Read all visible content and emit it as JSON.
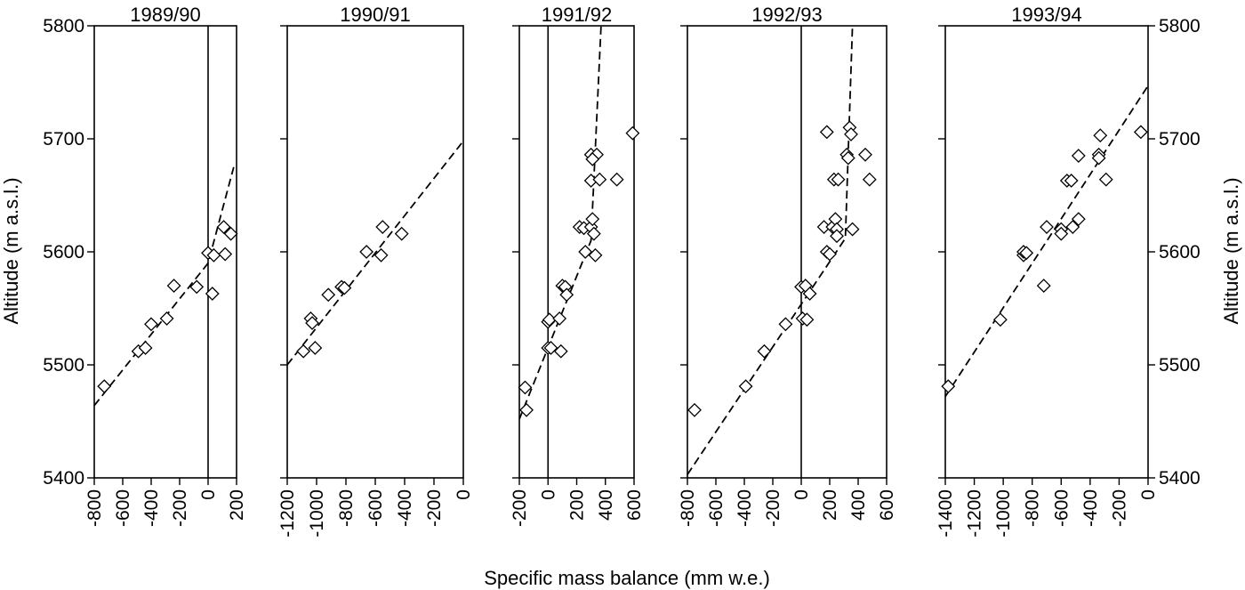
{
  "figure": {
    "xlabel": "Specific mass balance (mm w.e.)",
    "ylabel_left": "Altitude (m a.s.l.)",
    "ylabel_right": "Altitude (m a.s.l.)"
  },
  "chart_data": [
    {
      "type": "scatter",
      "title": "1989/90",
      "xlabel": "Specific mass balance (mm w.e.)",
      "ylabel": "Altitude (m a.s.l.)",
      "xlim": [
        -800,
        200
      ],
      "ylim": [
        5400,
        5800
      ],
      "xticks": [
        "-800",
        "-600",
        "-400",
        "-200",
        "0",
        "200"
      ],
      "yticks": [
        "5400",
        "5500",
        "5600",
        "5700",
        "5800"
      ],
      "y_tick_labels_side": "left",
      "zero_line": true,
      "points": [
        [
          -730,
          5481
        ],
        [
          -490,
          5512
        ],
        [
          -440,
          5515
        ],
        [
          -400,
          5536
        ],
        [
          -290,
          5541
        ],
        [
          -240,
          5570
        ],
        [
          -80,
          5569
        ],
        [
          0,
          5599
        ],
        [
          30,
          5563
        ],
        [
          40,
          5597
        ],
        [
          110,
          5622
        ],
        [
          120,
          5598
        ],
        [
          160,
          5616
        ]
      ],
      "fit_line": [
        [
          -800,
          5464
        ],
        [
          0,
          5590
        ],
        [
          180,
          5675
        ]
      ]
    },
    {
      "type": "scatter",
      "title": "1990/91",
      "xlabel": "Specific mass balance (mm w.e.)",
      "ylabel": "Altitude (m a.s.l.)",
      "xlim": [
        -1200,
        0
      ],
      "ylim": [
        5400,
        5800
      ],
      "xticks": [
        "-1200",
        "-1000",
        "-800",
        "-600",
        "-400",
        "-200",
        "0"
      ],
      "zero_line": false,
      "points": [
        [
          -1090,
          5512
        ],
        [
          -1040,
          5541
        ],
        [
          -1030,
          5537
        ],
        [
          -1010,
          5515
        ],
        [
          -920,
          5562
        ],
        [
          -830,
          5569
        ],
        [
          -810,
          5568
        ],
        [
          -660,
          5600
        ],
        [
          -550,
          5622
        ],
        [
          -560,
          5597
        ],
        [
          -420,
          5616
        ]
      ],
      "fit_line": [
        [
          -1200,
          5500
        ],
        [
          0,
          5698
        ]
      ]
    },
    {
      "type": "scatter",
      "title": "1991/92",
      "xlabel": "Specific mass balance (mm w.e.)",
      "ylabel": "Altitude (m a.s.l.)",
      "xlim": [
        -200,
        600
      ],
      "ylim": [
        5400,
        5800
      ],
      "xticks": [
        "-200",
        "0",
        "200",
        "400",
        "600"
      ],
      "zero_line": true,
      "points": [
        [
          -160,
          5480
        ],
        [
          -150,
          5460
        ],
        [
          0,
          5538
        ],
        [
          10,
          5540
        ],
        [
          0,
          5515
        ],
        [
          20,
          5515
        ],
        [
          90,
          5512
        ],
        [
          100,
          5570
        ],
        [
          80,
          5541
        ],
        [
          120,
          5569
        ],
        [
          130,
          5562
        ],
        [
          220,
          5622
        ],
        [
          250,
          5621
        ],
        [
          260,
          5600
        ],
        [
          300,
          5622
        ],
        [
          310,
          5629
        ],
        [
          320,
          5616
        ],
        [
          300,
          5686
        ],
        [
          340,
          5686
        ],
        [
          310,
          5682
        ],
        [
          300,
          5663
        ],
        [
          360,
          5664
        ],
        [
          330,
          5597
        ],
        [
          480,
          5664
        ],
        [
          590,
          5705
        ]
      ],
      "fit_line": [
        [
          -200,
          5452
        ],
        [
          300,
          5610
        ],
        [
          370,
          5800
        ]
      ]
    },
    {
      "type": "scatter",
      "title": "1992/93",
      "xlabel": "Specific mass balance (mm w.e.)",
      "ylabel": "Altitude (m a.s.l.)",
      "xlim": [
        -800,
        600
      ],
      "ylim": [
        5400,
        5800
      ],
      "xticks": [
        "-800",
        "-600",
        "-400",
        "-200",
        "0",
        "200",
        "400",
        "600"
      ],
      "zero_line": true,
      "points": [
        [
          -750,
          5460
        ],
        [
          -390,
          5481
        ],
        [
          -260,
          5512
        ],
        [
          -110,
          5536
        ],
        [
          0,
          5569
        ],
        [
          30,
          5570
        ],
        [
          10,
          5541
        ],
        [
          40,
          5540
        ],
        [
          60,
          5563
        ],
        [
          160,
          5622
        ],
        [
          180,
          5600
        ],
        [
          200,
          5598
        ],
        [
          220,
          5622
        ],
        [
          240,
          5629
        ],
        [
          250,
          5620
        ],
        [
          250,
          5614
        ],
        [
          230,
          5664
        ],
        [
          260,
          5664
        ],
        [
          180,
          5706
        ],
        [
          320,
          5686
        ],
        [
          330,
          5683
        ],
        [
          340,
          5710
        ],
        [
          350,
          5704
        ],
        [
          360,
          5620
        ],
        [
          450,
          5686
        ],
        [
          480,
          5664
        ]
      ],
      "fit_line": [
        [
          -800,
          5403
        ],
        [
          310,
          5612
        ],
        [
          360,
          5800
        ]
      ]
    },
    {
      "type": "scatter",
      "title": "1993/94",
      "xlabel": "Specific mass balance (mm w.e.)",
      "ylabel": "Altitude (m a.s.l.)",
      "xlim": [
        -1400,
        0
      ],
      "ylim": [
        5400,
        5800
      ],
      "xticks": [
        "-1400",
        "-1200",
        "-1000",
        "-800",
        "-600",
        "-400",
        "-200",
        "0"
      ],
      "yticks": [
        "5400",
        "5500",
        "5600",
        "5700",
        "5800"
      ],
      "y_tick_labels_side": "right",
      "zero_line": false,
      "points": [
        [
          -1380,
          5481
        ],
        [
          -1020,
          5540
        ],
        [
          -860,
          5597
        ],
        [
          -860,
          5600
        ],
        [
          -840,
          5599
        ],
        [
          -720,
          5570
        ],
        [
          -700,
          5622
        ],
        [
          -600,
          5620
        ],
        [
          -600,
          5616
        ],
        [
          -560,
          5663
        ],
        [
          -530,
          5663
        ],
        [
          -520,
          5622
        ],
        [
          -480,
          5629
        ],
        [
          -480,
          5685
        ],
        [
          -340,
          5686
        ],
        [
          -340,
          5683
        ],
        [
          -330,
          5703
        ],
        [
          -290,
          5664
        ],
        [
          -50,
          5706
        ]
      ],
      "fit_line": [
        [
          -1400,
          5472
        ],
        [
          0,
          5747
        ]
      ]
    }
  ]
}
